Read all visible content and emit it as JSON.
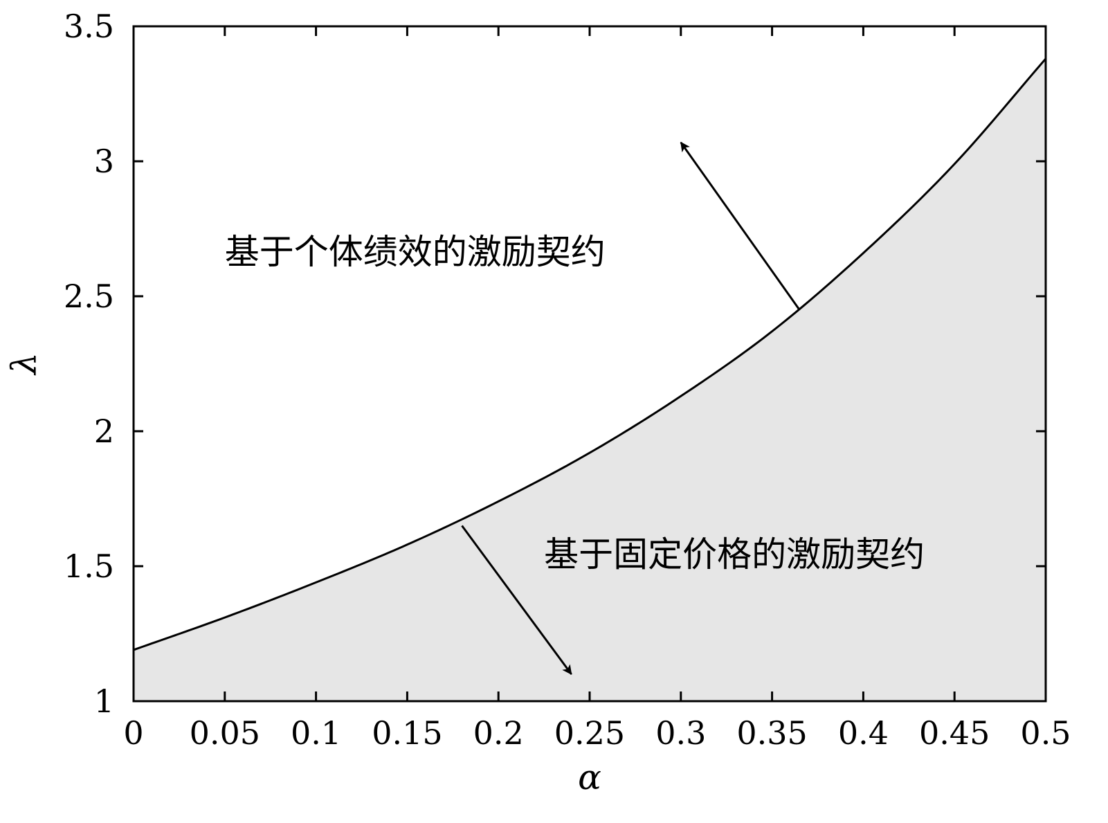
{
  "chart_data": {
    "type": "area",
    "title": "",
    "xlabel": "α",
    "ylabel": "λ",
    "xlim": [
      0,
      0.5
    ],
    "ylim": [
      1,
      3.5
    ],
    "grid": false,
    "xticks": [
      0,
      0.05,
      0.1,
      0.15,
      0.2,
      0.25,
      0.3,
      0.35,
      0.4,
      0.45,
      0.5
    ],
    "xtick_labels": [
      "0",
      "0.05",
      "0.1",
      "0.15",
      "0.2",
      "0.25",
      "0.3",
      "0.35",
      "0.4",
      "0.45",
      "0.5"
    ],
    "yticks": [
      1,
      1.5,
      2,
      2.5,
      3,
      3.5
    ],
    "ytick_labels": [
      "1",
      "1.5",
      "2",
      "2.5",
      "3",
      "3.5"
    ],
    "boundary": {
      "x": [
        0,
        0.05,
        0.1,
        0.15,
        0.2,
        0.25,
        0.3,
        0.35,
        0.4,
        0.45,
        0.5
      ],
      "y": [
        1.19,
        1.31,
        1.44,
        1.58,
        1.74,
        1.92,
        2.13,
        2.37,
        2.66,
        2.99,
        3.38
      ]
    },
    "fill_below_color": "#e6e6e6",
    "annotations": [
      {
        "text": "基于个体绩效的激励契约",
        "text_at": [
          0.05,
          2.62
        ],
        "arrow_from": [
          0.365,
          2.45
        ],
        "arrow_to": [
          0.3,
          3.07
        ]
      },
      {
        "text": "基于固定价格的激励契约",
        "text_at": [
          0.225,
          1.5
        ],
        "arrow_from": [
          0.18,
          1.65
        ],
        "arrow_to": [
          0.24,
          1.1
        ]
      }
    ]
  }
}
